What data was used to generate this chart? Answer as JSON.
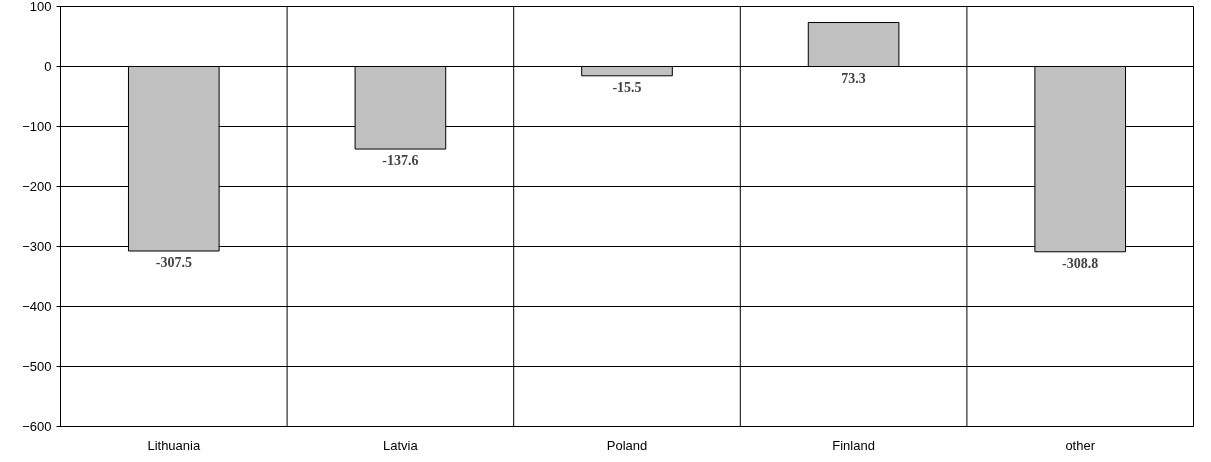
{
  "chart_data": {
    "type": "bar",
    "categories": [
      "Lithuania",
      "Latvia",
      "Poland",
      "Finland",
      "other"
    ],
    "values": [
      -307.5,
      -137.6,
      -15.5,
      73.3,
      -308.8
    ],
    "color": "#c0c0c0",
    "ylim": [
      -600,
      100
    ],
    "yticks": [
      -600,
      -500,
      -400,
      -300,
      -200,
      -100,
      0,
      100
    ],
    "grid": true,
    "data_labels": true
  }
}
